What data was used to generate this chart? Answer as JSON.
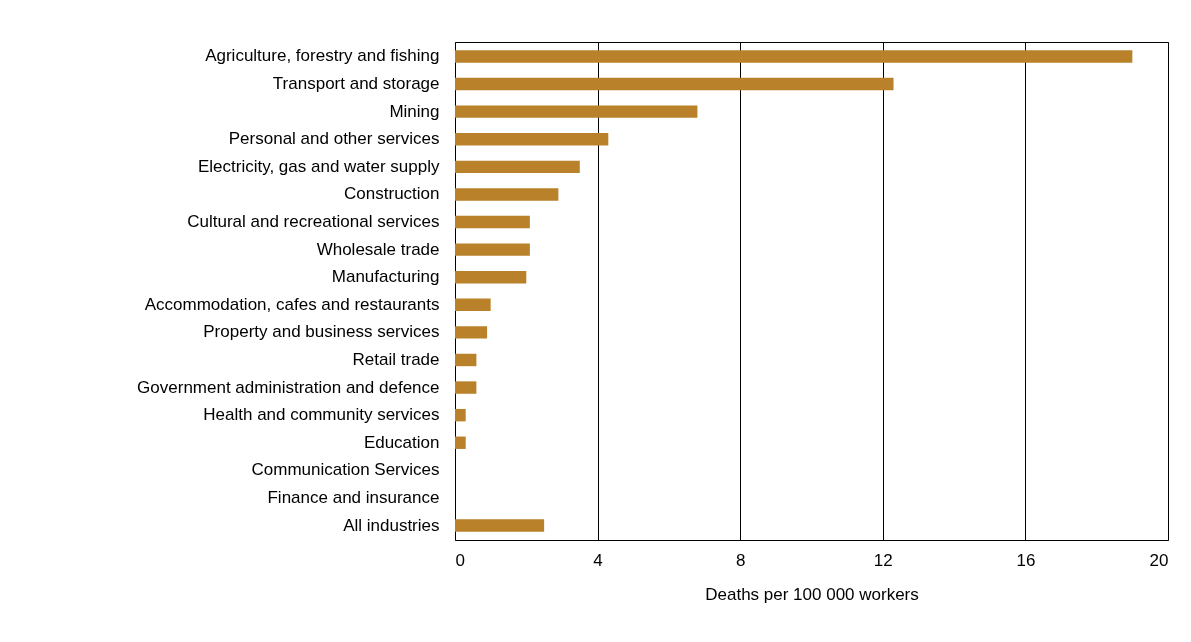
{
  "chart_data": {
    "type": "bar",
    "orientation": "horizontal",
    "xlabel": "Deaths per 100 000 workers",
    "categories": [
      "Agriculture, forestry and fishing",
      "Transport and storage",
      "Mining",
      "Personal and other services",
      "Electricity, gas and water supply",
      "Construction",
      "Cultural and recreational services",
      "Wholesale trade",
      "Manufacturing",
      "Accommodation, cafes and restaurants",
      "Property and business services",
      "Retail trade",
      "Government administration and defence",
      "Health and community services",
      "Education",
      "Communication Services",
      "Finance and insurance",
      "All industries"
    ],
    "values": [
      19.0,
      12.3,
      6.8,
      4.3,
      3.5,
      2.9,
      2.1,
      2.1,
      2.0,
      1.0,
      0.9,
      0.6,
      0.6,
      0.3,
      0.3,
      0,
      0,
      2.5
    ],
    "color": "#b8812a",
    "xlim": [
      0,
      20
    ],
    "xticks": [
      0,
      4,
      8,
      12,
      16,
      20
    ],
    "grid": "x"
  }
}
